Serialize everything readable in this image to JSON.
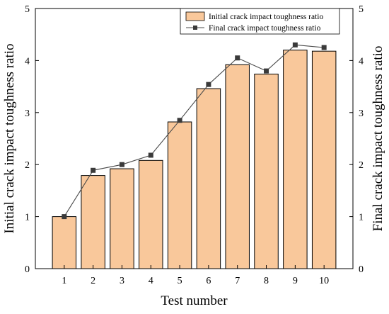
{
  "chart_data": {
    "type": "bar",
    "categories": [
      "1",
      "2",
      "3",
      "4",
      "5",
      "6",
      "7",
      "8",
      "9",
      "10"
    ],
    "series": [
      {
        "name": "Initial crack impact toughness ratio",
        "kind": "bar",
        "axis": "left",
        "color": "#F9C89B",
        "values": [
          1.0,
          1.79,
          1.92,
          2.08,
          2.82,
          3.46,
          3.92,
          3.74,
          4.2,
          4.18
        ]
      },
      {
        "name": "Final crack impact toughness ratio",
        "kind": "line",
        "axis": "right",
        "color": "#4A4A4A",
        "values": [
          1.0,
          1.89,
          2.0,
          2.18,
          2.85,
          3.54,
          4.05,
          3.8,
          4.3,
          4.25
        ]
      }
    ],
    "xlabel": "Test number",
    "ylabel": "Initial crack impact toughness ratio",
    "y2label": "Final crack impact toughness ratio",
    "ylim": [
      0,
      5
    ],
    "y2lim": [
      0,
      5
    ],
    "yticks": [
      "0",
      "1",
      "2",
      "3",
      "4",
      "5"
    ],
    "grid": false,
    "legend_position": "top-right"
  }
}
